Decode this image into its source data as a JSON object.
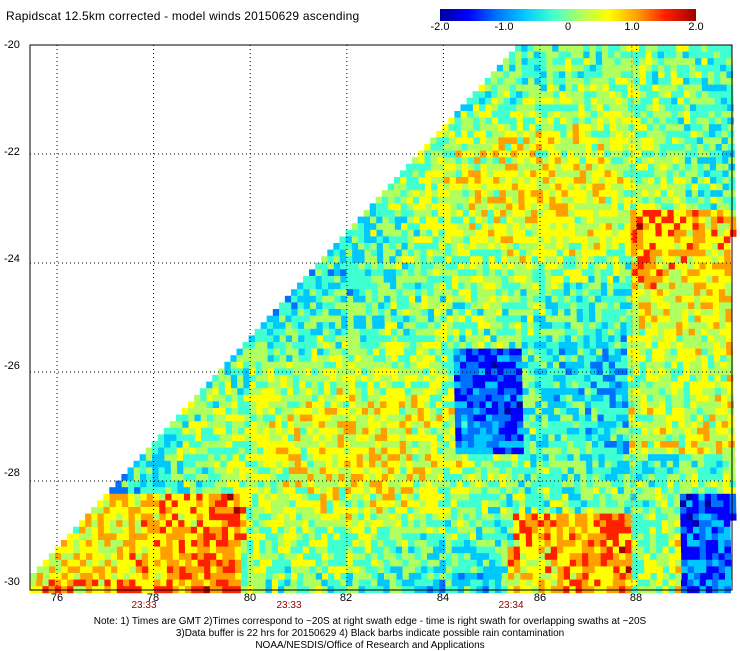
{
  "title": "Rapidscat 12.5km corrected - model winds 20150629 ascending",
  "colorbar": {
    "min": -2.0,
    "max": 2.0,
    "ticks": [
      "-2.0",
      "-1.0",
      "0",
      "1.0",
      "2.0"
    ],
    "tick_values": [
      -2.0,
      -1.0,
      0,
      1.0,
      2.0
    ],
    "colors": [
      "#0000a0",
      "#0000ff",
      "#0070ff",
      "#00c8ff",
      "#40ffd0",
      "#b0ff60",
      "#ffff00",
      "#ffa000",
      "#ff2000",
      "#a00000"
    ]
  },
  "map": {
    "lat_labels": [
      "-20",
      "-22",
      "-24",
      "-26",
      "-28",
      "-30"
    ],
    "lat_values": [
      -20,
      -22,
      -24,
      -26,
      -28,
      -30
    ],
    "lon_labels": [
      "76",
      "78",
      "80",
      "82",
      "84",
      "86",
      "88"
    ],
    "lon_values": [
      76,
      78,
      80,
      82,
      84,
      86,
      88
    ],
    "lon_range": [
      75,
      90
    ],
    "lat_range": [
      -30,
      -20
    ],
    "grid": "dotted",
    "swath_edge_color": "#ffa000"
  },
  "time_labels": [
    {
      "text": "23:33",
      "lon": 78
    },
    {
      "text": "23:33",
      "lon": 81
    },
    {
      "text": "23:34",
      "lon": 85.2
    }
  ],
  "notes": {
    "line1": "Note: 1) Times are GMT 2)Times correspond to ~20S at right swath edge - time is right swath for overlapping swaths at ~20S",
    "line2": "3)Data buffer is 22 hrs for 20150629 4) Black barbs indicate possible rain contamination",
    "line3": "NOAA/NESDIS/Office of Research and Applications"
  }
}
